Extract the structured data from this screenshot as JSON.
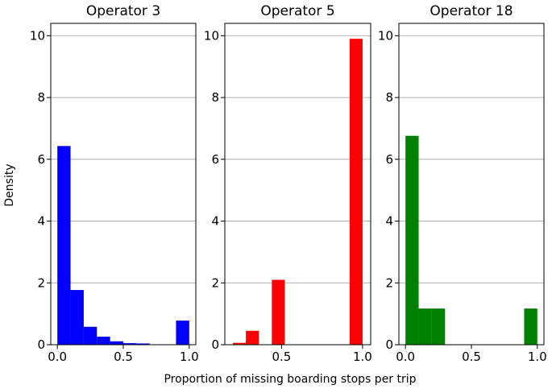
{
  "figure": {
    "ylabel": "Density",
    "xlabel": "Proportion of missing boarding stops per trip"
  },
  "chart_data": [
    {
      "type": "bar",
      "subtype": "histogram",
      "title": "Operator 3",
      "color": "#0000ff",
      "xlim": [
        -0.05,
        1.05
      ],
      "ylim": [
        0,
        10.4
      ],
      "xticks": [
        0.0,
        0.5,
        1.0
      ],
      "xtick_labels": [
        "0.0",
        "0.5",
        "1.0"
      ],
      "yticks": [
        0,
        2,
        4,
        6,
        8,
        10
      ],
      "ytick_labels": [
        "0",
        "2",
        "4",
        "6",
        "8",
        "10"
      ],
      "grid": "horizontal",
      "bins": [
        {
          "x0": 0.0,
          "x1": 0.1,
          "value": 6.43
        },
        {
          "x0": 0.1,
          "x1": 0.2,
          "value": 1.77
        },
        {
          "x0": 0.2,
          "x1": 0.3,
          "value": 0.58
        },
        {
          "x0": 0.3,
          "x1": 0.4,
          "value": 0.26
        },
        {
          "x0": 0.4,
          "x1": 0.5,
          "value": 0.11
        },
        {
          "x0": 0.5,
          "x1": 0.6,
          "value": 0.05
        },
        {
          "x0": 0.6,
          "x1": 0.7,
          "value": 0.04
        },
        {
          "x0": 0.7,
          "x1": 0.8,
          "value": 0.0
        },
        {
          "x0": 0.8,
          "x1": 0.9,
          "value": 0.0
        },
        {
          "x0": 0.9,
          "x1": 1.0,
          "value": 0.78
        }
      ]
    },
    {
      "type": "bar",
      "subtype": "histogram",
      "title": "Operator 5",
      "color": "#ff0000",
      "xlim": [
        0.15,
        1.05
      ],
      "ylim": [
        0,
        10.4
      ],
      "xticks": [
        0.5,
        1.0
      ],
      "xtick_labels": [
        "0.5",
        "1.0"
      ],
      "yticks": [
        0,
        2,
        4,
        6,
        8,
        10
      ],
      "ytick_labels": [
        "0",
        "2",
        "4",
        "6",
        "8",
        "10"
      ],
      "grid": "horizontal",
      "bins": [
        {
          "x0": 0.2,
          "x1": 0.28,
          "value": 0.06
        },
        {
          "x0": 0.28,
          "x1": 0.36,
          "value": 0.45
        },
        {
          "x0": 0.36,
          "x1": 0.44,
          "value": 0.0
        },
        {
          "x0": 0.44,
          "x1": 0.52,
          "value": 2.1
        },
        {
          "x0": 0.52,
          "x1": 0.6,
          "value": 0.0
        },
        {
          "x0": 0.6,
          "x1": 0.68,
          "value": 0.0
        },
        {
          "x0": 0.68,
          "x1": 0.76,
          "value": 0.0
        },
        {
          "x0": 0.76,
          "x1": 0.84,
          "value": 0.0
        },
        {
          "x0": 0.84,
          "x1": 0.92,
          "value": 0.0
        },
        {
          "x0": 0.92,
          "x1": 1.0,
          "value": 9.9
        }
      ]
    },
    {
      "type": "bar",
      "subtype": "histogram",
      "title": "Operator 18",
      "color": "#008000",
      "xlim": [
        -0.05,
        1.05
      ],
      "ylim": [
        0,
        10.4
      ],
      "xticks": [
        0.0,
        0.5,
        1.0
      ],
      "xtick_labels": [
        "0.0",
        "0.5",
        "1.0"
      ],
      "yticks": [
        0,
        2,
        4,
        6,
        8,
        10
      ],
      "ytick_labels": [
        "0",
        "2",
        "4",
        "6",
        "8",
        "10"
      ],
      "grid": "horizontal",
      "bins": [
        {
          "x0": 0.0,
          "x1": 0.1,
          "value": 6.76
        },
        {
          "x0": 0.1,
          "x1": 0.2,
          "value": 1.17
        },
        {
          "x0": 0.2,
          "x1": 0.3,
          "value": 1.17
        },
        {
          "x0": 0.3,
          "x1": 0.4,
          "value": 0.0
        },
        {
          "x0": 0.4,
          "x1": 0.5,
          "value": 0.0
        },
        {
          "x0": 0.5,
          "x1": 0.6,
          "value": 0.0
        },
        {
          "x0": 0.6,
          "x1": 0.7,
          "value": 0.0
        },
        {
          "x0": 0.7,
          "x1": 0.8,
          "value": 0.0
        },
        {
          "x0": 0.8,
          "x1": 0.9,
          "value": 0.0
        },
        {
          "x0": 0.9,
          "x1": 1.0,
          "value": 1.17
        }
      ]
    }
  ]
}
